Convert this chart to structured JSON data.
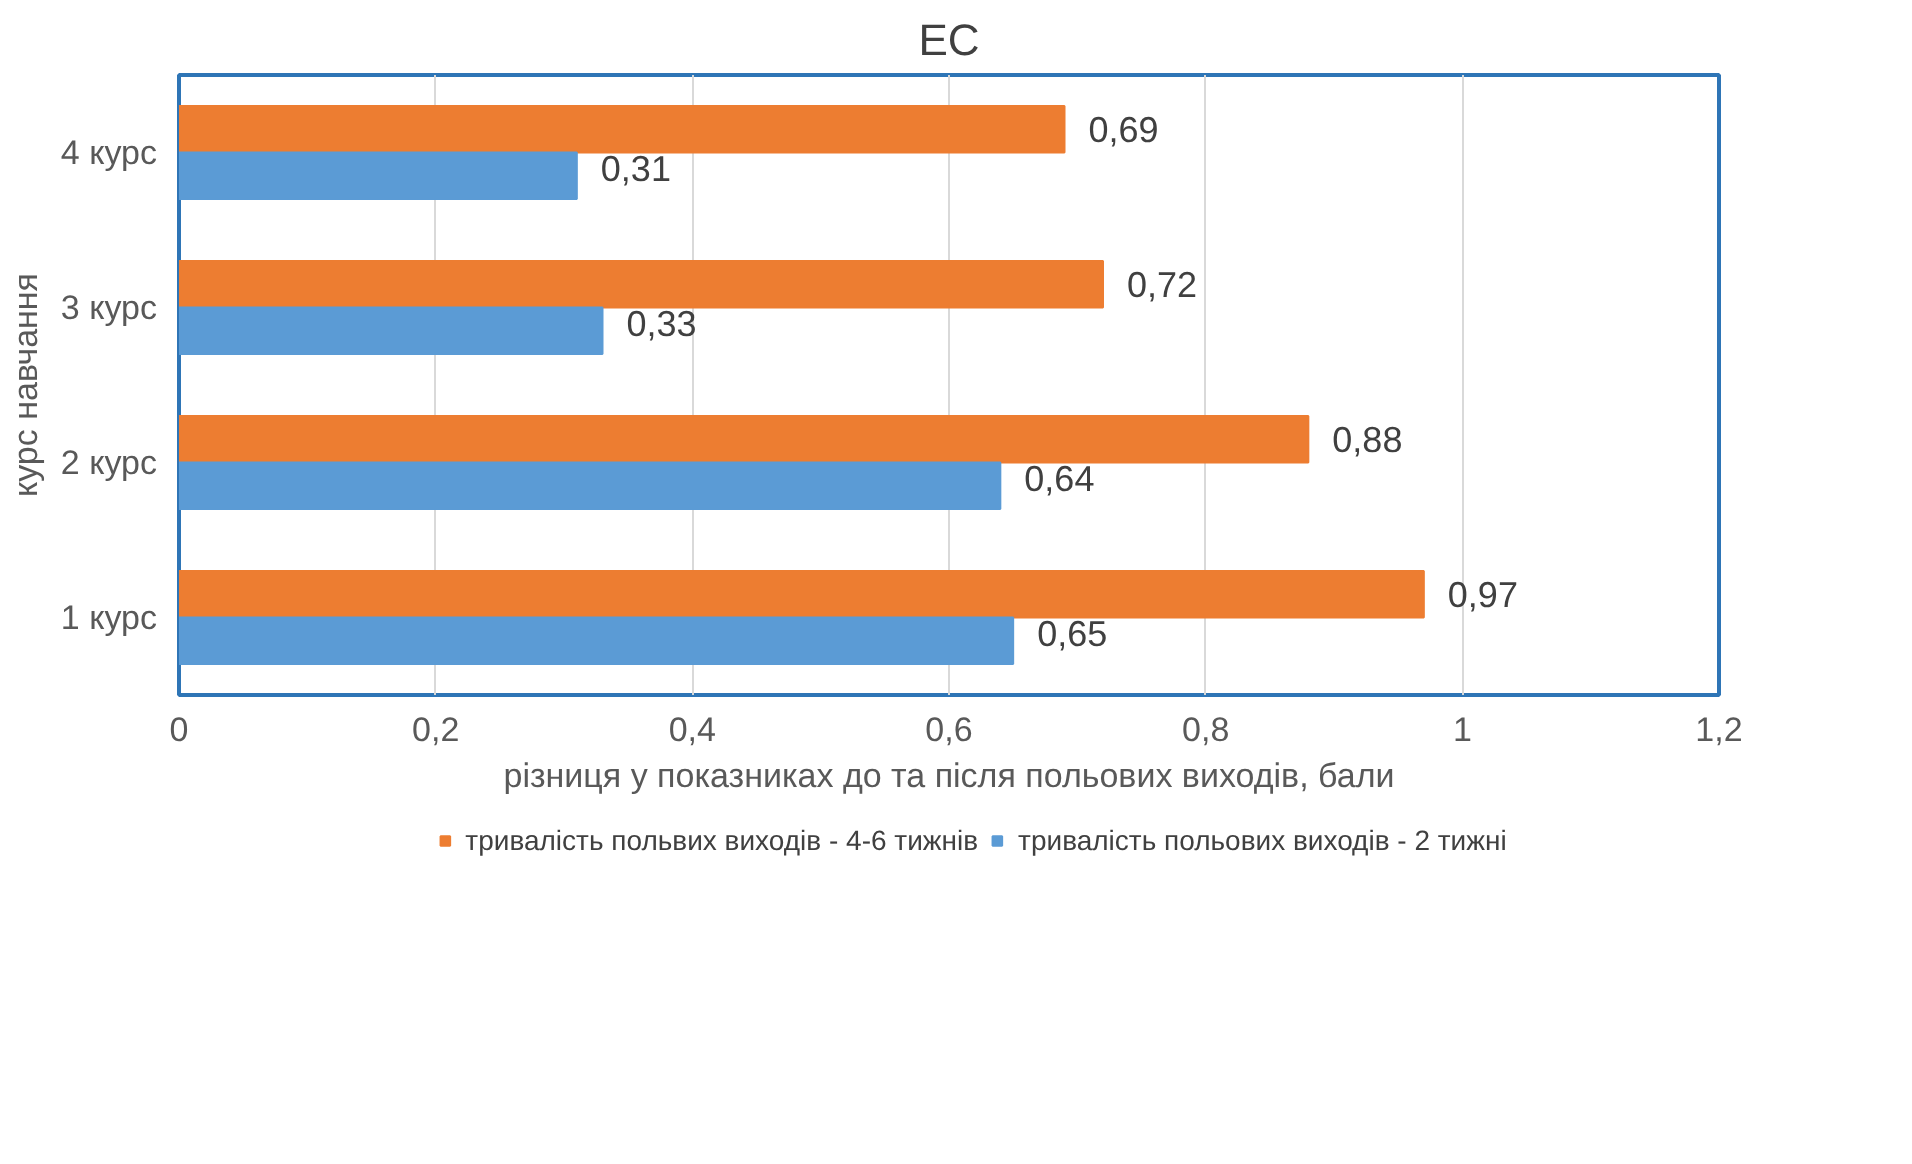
{
  "chart_data": {
    "type": "bar",
    "orientation": "horizontal",
    "title": "ЕС",
    "xlabel": "різниця у показниках до та після польових виходів, бали",
    "ylabel": "курс навчання",
    "categories": [
      "4 курс",
      "3 курс",
      "2 курс",
      "1 курс"
    ],
    "series": [
      {
        "name": "тривалість польвих виходів - 4-6 тижнів",
        "color": "#ed7d31",
        "values": [
          0.69,
          0.72,
          0.88,
          0.97
        ],
        "value_labels": [
          "0,69",
          "0,72",
          "0,88",
          "0,97"
        ]
      },
      {
        "name": "тривалість польових виходів - 2 тижні",
        "color": "#5b9bd5",
        "values": [
          0.31,
          0.33,
          0.64,
          0.65
        ],
        "value_labels": [
          "0,31",
          "0,33",
          "0,64",
          "0,65"
        ]
      }
    ],
    "xlim": [
      0,
      1.2
    ],
    "xticks": [
      0,
      {
        "value": 0.2,
        "label": "0,2"
      },
      {
        "value": 0.4,
        "label": "0,4"
      },
      {
        "value": 0.6,
        "label": "0,6"
      },
      {
        "value": 0.8,
        "label": "0,8"
      },
      1,
      {
        "value": 1.2,
        "label": "1,2"
      }
    ],
    "grid": "x",
    "legend": "bottom"
  }
}
